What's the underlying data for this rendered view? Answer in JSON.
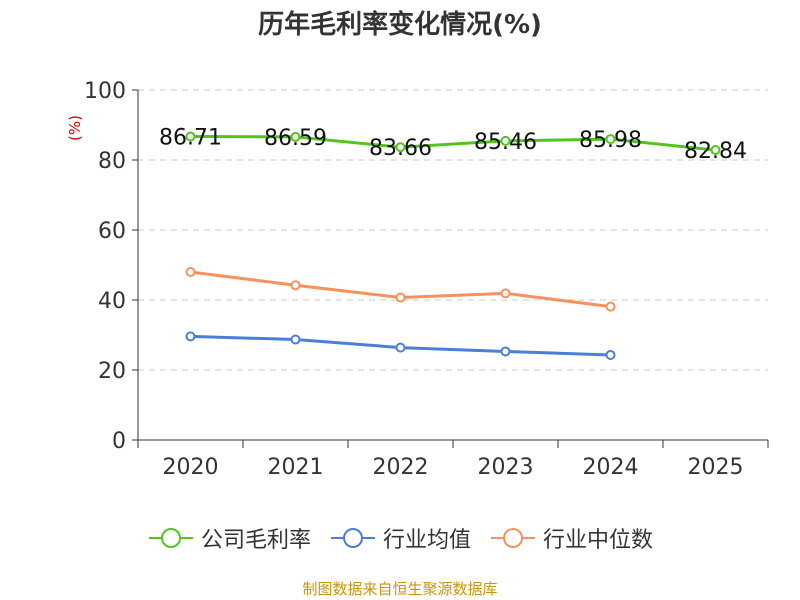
{
  "chart_data": {
    "type": "line",
    "title": "历年毛利率变化情况(%)",
    "ylabel": "(%)",
    "xlabel": "",
    "categories": [
      "2020",
      "2021",
      "2022",
      "2023",
      "2024",
      "2025"
    ],
    "ylim": [
      0,
      100
    ],
    "yticks": [
      0,
      20,
      40,
      60,
      80,
      100
    ],
    "grid": true,
    "legend_position": "bottom",
    "series": [
      {
        "name": "公司毛利率",
        "color": "#52c41a",
        "values": [
          86.71,
          86.59,
          83.66,
          85.46,
          85.98,
          82.84
        ],
        "labels": [
          "86.71",
          "86.59",
          "83.66",
          "85.46",
          "85.98",
          "82.84"
        ]
      },
      {
        "name": "行业均值",
        "color": "#4a7fd9",
        "values": [
          29.6,
          28.7,
          26.4,
          25.3,
          24.3,
          null
        ],
        "labels": []
      },
      {
        "name": "行业中位数",
        "color": "#f5915a",
        "values": [
          48.0,
          44.2,
          40.7,
          41.9,
          38.1,
          null
        ],
        "labels": []
      }
    ]
  },
  "source": "制图数据来自恒生聚源数据库"
}
